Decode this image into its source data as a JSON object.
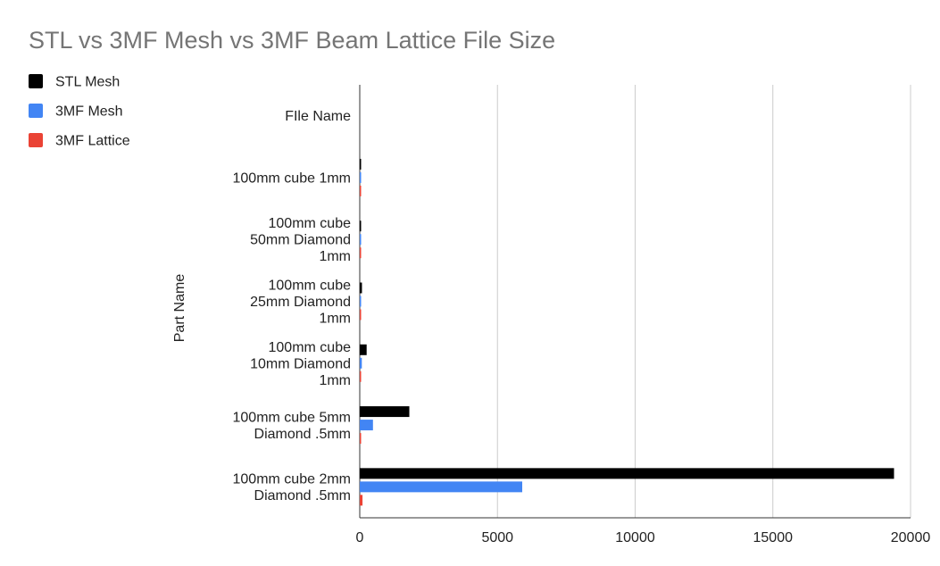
{
  "chart_data": {
    "type": "bar",
    "orientation": "horizontal",
    "title": "STL vs 3MF Mesh vs 3MF Beam Lattice File Size",
    "xlabel": "",
    "ylabel": "Part Name",
    "categories": [
      [
        "FIle Name"
      ],
      [
        "100mm cube 1mm"
      ],
      [
        "100mm cube",
        "50mm Diamond",
        "1mm"
      ],
      [
        "100mm cube",
        "25mm Diamond",
        "1mm"
      ],
      [
        "100mm cube",
        "10mm Diamond",
        "1mm"
      ],
      [
        "100mm cube 5mm",
        "Diamond .5mm"
      ],
      [
        "100mm cube 2mm",
        "Diamond .5mm"
      ]
    ],
    "series": [
      {
        "name": "STL Mesh",
        "color": "#000000",
        "values": [
          0,
          30,
          15,
          80,
          250,
          1800,
          19400
        ]
      },
      {
        "name": "3MF Mesh",
        "color": "#4285f4",
        "values": [
          0,
          5,
          4,
          18,
          75,
          480,
          5900
        ]
      },
      {
        "name": "3MF Lattice",
        "color": "#ea4335",
        "values": [
          0,
          1,
          1,
          3,
          6,
          35,
          100
        ]
      }
    ],
    "xlim": [
      0,
      20000
    ],
    "xticks": [
      "0",
      "5000",
      "10000",
      "15000",
      "20000"
    ],
    "xtick_values": [
      0,
      5000,
      10000,
      15000,
      20000
    ],
    "grid": true,
    "legend_position": "left"
  }
}
